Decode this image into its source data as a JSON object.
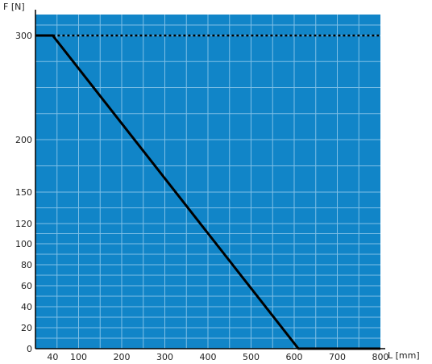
{
  "chart_data": {
    "type": "line",
    "xlabel": "L [mm]",
    "ylabel": "F [N]",
    "xlim": [
      0,
      800
    ],
    "ylim": [
      0,
      300
    ],
    "x_ticks": [
      40,
      100,
      200,
      300,
      400,
      500,
      600,
      700,
      800
    ],
    "y_ticks": [
      0,
      20,
      40,
      60,
      80,
      100,
      120,
      150,
      200,
      300
    ],
    "y_scale": "non-linear (piecewise)",
    "grid": true,
    "colors": {
      "plot_bg": "#1185c8",
      "grid": "#7fbfe6",
      "line": "#000000"
    },
    "series": [
      {
        "style": "solid",
        "x": [
          0,
          40,
          610,
          800
        ],
        "y": [
          300,
          300,
          0,
          0
        ]
      },
      {
        "style": "dotted",
        "x": [
          40,
          800
        ],
        "y": [
          300,
          300
        ]
      }
    ]
  }
}
